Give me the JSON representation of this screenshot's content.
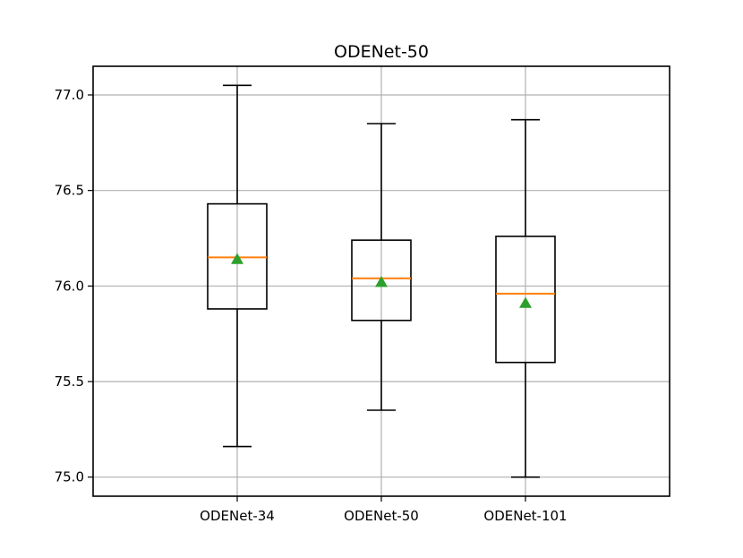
{
  "chart_data": {
    "type": "box",
    "title": "ODENet-50",
    "xlabel": "",
    "ylabel": "",
    "categories": [
      "ODENet-34",
      "ODENet-50",
      "ODENet-101"
    ],
    "ylim": [
      74.9,
      77.15
    ],
    "yticks": [
      75.0,
      75.5,
      76.0,
      76.5,
      77.0
    ],
    "ytick_labels": [
      "75.0",
      "75.5",
      "76.0",
      "76.5",
      "77.0"
    ],
    "grid": true,
    "boxes": [
      {
        "category": "ODENet-34",
        "whisker_low": 75.16,
        "q1": 75.88,
        "median": 76.15,
        "q3": 76.43,
        "whisker_high": 77.05,
        "mean": 76.14
      },
      {
        "category": "ODENet-50",
        "whisker_low": 75.35,
        "q1": 75.82,
        "median": 76.04,
        "q3": 76.24,
        "whisker_high": 76.85,
        "mean": 76.02
      },
      {
        "category": "ODENet-101",
        "whisker_low": 75.0,
        "q1": 75.6,
        "median": 75.96,
        "q3": 76.26,
        "whisker_high": 76.87,
        "mean": 75.91
      }
    ],
    "colors": {
      "median": "#ff7f0e",
      "mean_marker": "#2ca02c",
      "box": "#000000",
      "grid": "#b0b0b0"
    },
    "mean_marker_shape": "triangle"
  }
}
